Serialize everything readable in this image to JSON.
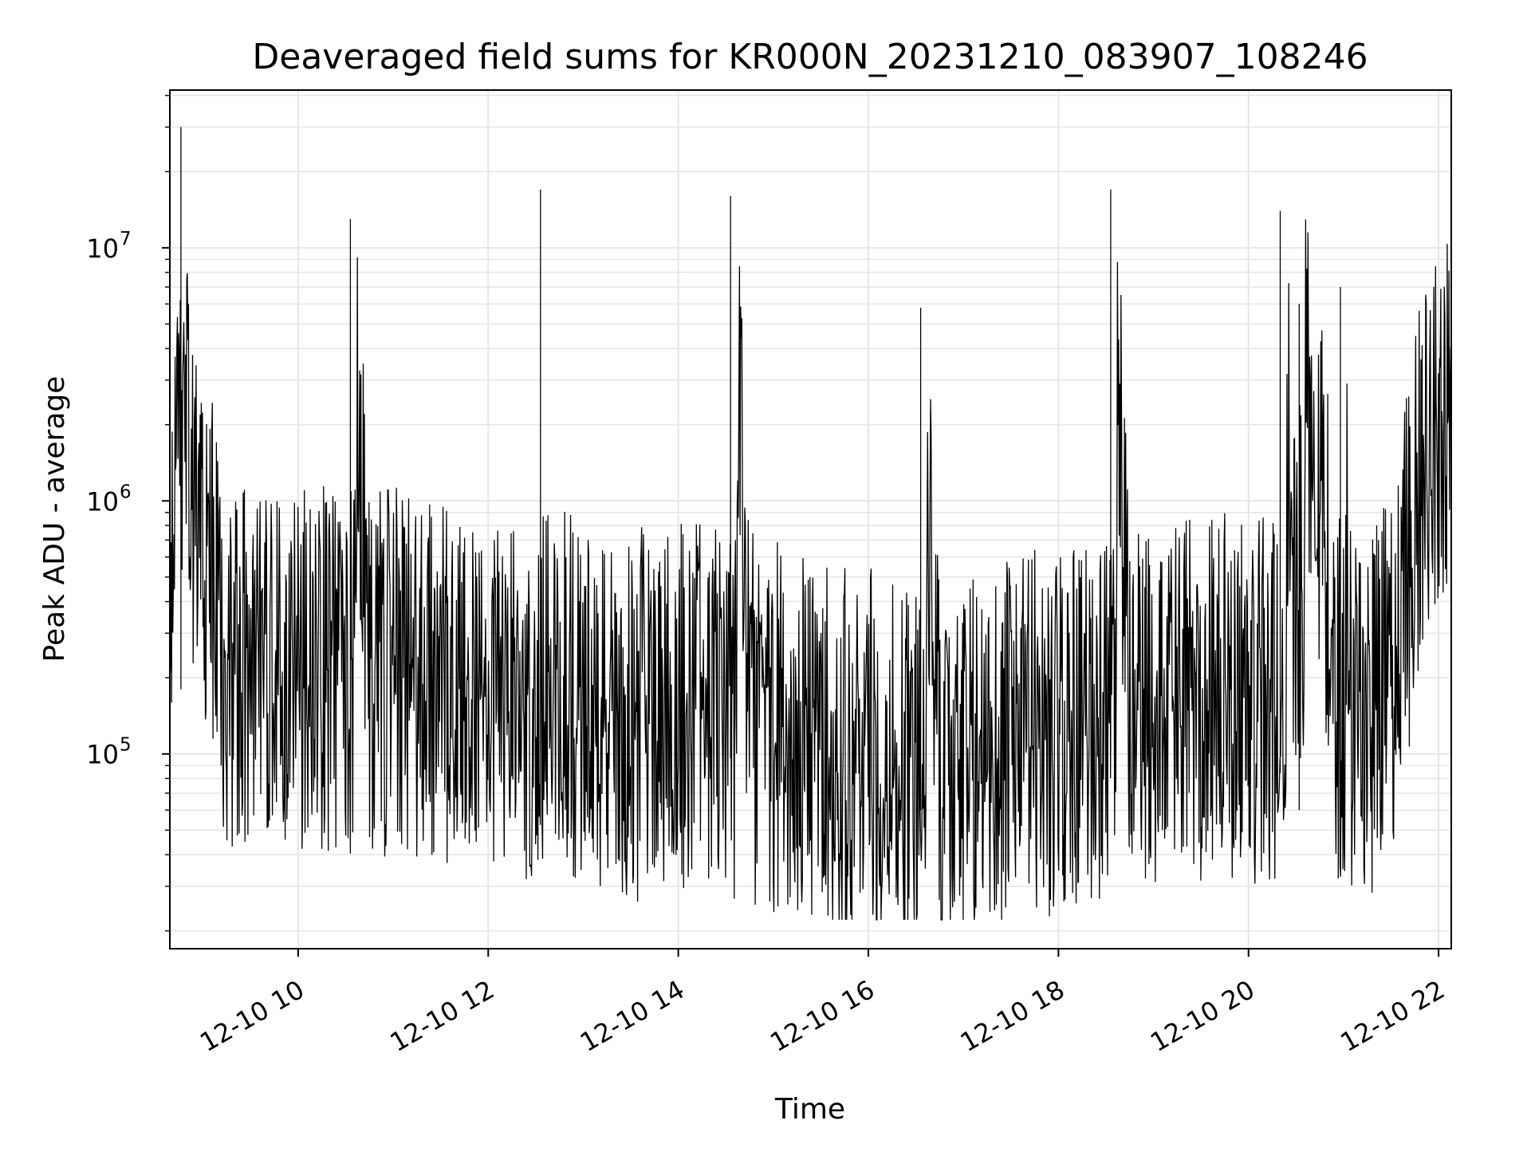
{
  "chart_data": {
    "type": "line",
    "title": "Deaveraged field sums for KR000N_20231210_083907_108246",
    "xlabel": "Time",
    "ylabel": "Peak ADU - average",
    "yscale": "log",
    "ylim": [
      17000,
      42000000
    ],
    "xlim": [
      "2023-12-10 08:39",
      "2023-12-10 22:08"
    ],
    "grid": true,
    "line_color": "#000000",
    "x_ticks": [
      {
        "t": "2023-12-10 10:00",
        "label": "12-10 10"
      },
      {
        "t": "2023-12-10 12:00",
        "label": "12-10 12"
      },
      {
        "t": "2023-12-10 14:00",
        "label": "12-10 14"
      },
      {
        "t": "2023-12-10 16:00",
        "label": "12-10 16"
      },
      {
        "t": "2023-12-10 18:00",
        "label": "12-10 18"
      },
      {
        "t": "2023-12-10 20:00",
        "label": "12-10 20"
      },
      {
        "t": "2023-12-10 22:00",
        "label": "12-10 22"
      }
    ],
    "y_ticks": [
      {
        "value": 100000,
        "base": "10",
        "exp": "5"
      },
      {
        "value": 1000000,
        "base": "10",
        "exp": "6"
      },
      {
        "value": 10000000,
        "base": "10",
        "exp": "7"
      }
    ],
    "series": [
      {
        "x": [
          "2023-12-10 08:39",
          "2023-12-10 08:45",
          "2023-12-10 08:46",
          "2023-12-10 08:52",
          "2023-12-10 08:58",
          "2023-12-10 09:05",
          "2023-12-10 09:12",
          "2023-12-10 09:18",
          "2023-12-10 09:30",
          "2023-12-10 09:45",
          "2023-12-10 10:00",
          "2023-12-10 10:15",
          "2023-12-10 10:30",
          "2023-12-10 10:33",
          "2023-12-10 10:45",
          "2023-12-10 11:00",
          "2023-12-10 11:15",
          "2023-12-10 11:30",
          "2023-12-10 11:45",
          "2023-12-10 12:00",
          "2023-12-10 12:15",
          "2023-12-10 12:30",
          "2023-12-10 12:33",
          "2023-12-10 12:36",
          "2023-12-10 12:45",
          "2023-12-10 13:00",
          "2023-12-10 13:15",
          "2023-12-10 13:30",
          "2023-12-10 13:45",
          "2023-12-10 14:00",
          "2023-12-10 14:15",
          "2023-12-10 14:30",
          "2023-12-10 14:33",
          "2023-12-10 14:45",
          "2023-12-10 15:00",
          "2023-12-10 15:15",
          "2023-12-10 15:30",
          "2023-12-10 15:45",
          "2023-12-10 16:00",
          "2023-12-10 16:15",
          "2023-12-10 16:30",
          "2023-12-10 16:33",
          "2023-12-10 16:45",
          "2023-12-10 17:00",
          "2023-12-10 17:15",
          "2023-12-10 17:30",
          "2023-12-10 17:45",
          "2023-12-10 18:00",
          "2023-12-10 18:15",
          "2023-12-10 18:30",
          "2023-12-10 18:33",
          "2023-12-10 18:45",
          "2023-12-10 19:00",
          "2023-12-10 19:15",
          "2023-12-10 19:30",
          "2023-12-10 19:45",
          "2023-12-10 20:00",
          "2023-12-10 20:15",
          "2023-12-10 20:18",
          "2023-12-10 20:20",
          "2023-12-10 20:30",
          "2023-12-10 20:32",
          "2023-12-10 20:45",
          "2023-12-10 20:55",
          "2023-12-10 20:58",
          "2023-12-10 21:05",
          "2023-12-10 21:15",
          "2023-12-10 21:30",
          "2023-12-10 21:45",
          "2023-12-10 21:50",
          "2023-12-10 22:00",
          "2023-12-10 22:08"
        ],
        "y": [
          600000,
          1500000,
          30000000,
          1500000,
          700000,
          500000,
          250000,
          200000,
          220000,
          200000,
          200000,
          210000,
          220000,
          13000000,
          220000,
          210000,
          200000,
          190000,
          180000,
          170000,
          160000,
          170000,
          17000000,
          200000,
          180000,
          160000,
          150000,
          140000,
          150000,
          160000,
          150000,
          140000,
          16000000,
          140000,
          130000,
          120000,
          110000,
          100000,
          100000,
          90000,
          80000,
          5800000,
          80000,
          90000,
          100000,
          110000,
          120000,
          120000,
          130000,
          140000,
          17000000,
          140000,
          150000,
          160000,
          170000,
          170000,
          170000,
          160000,
          150000,
          14000000,
          180000,
          6000000,
          1200000,
          200000,
          7000000,
          150000,
          140000,
          200000,
          800000,
          1500000,
          2000000,
          2500000
        ]
      }
    ]
  }
}
